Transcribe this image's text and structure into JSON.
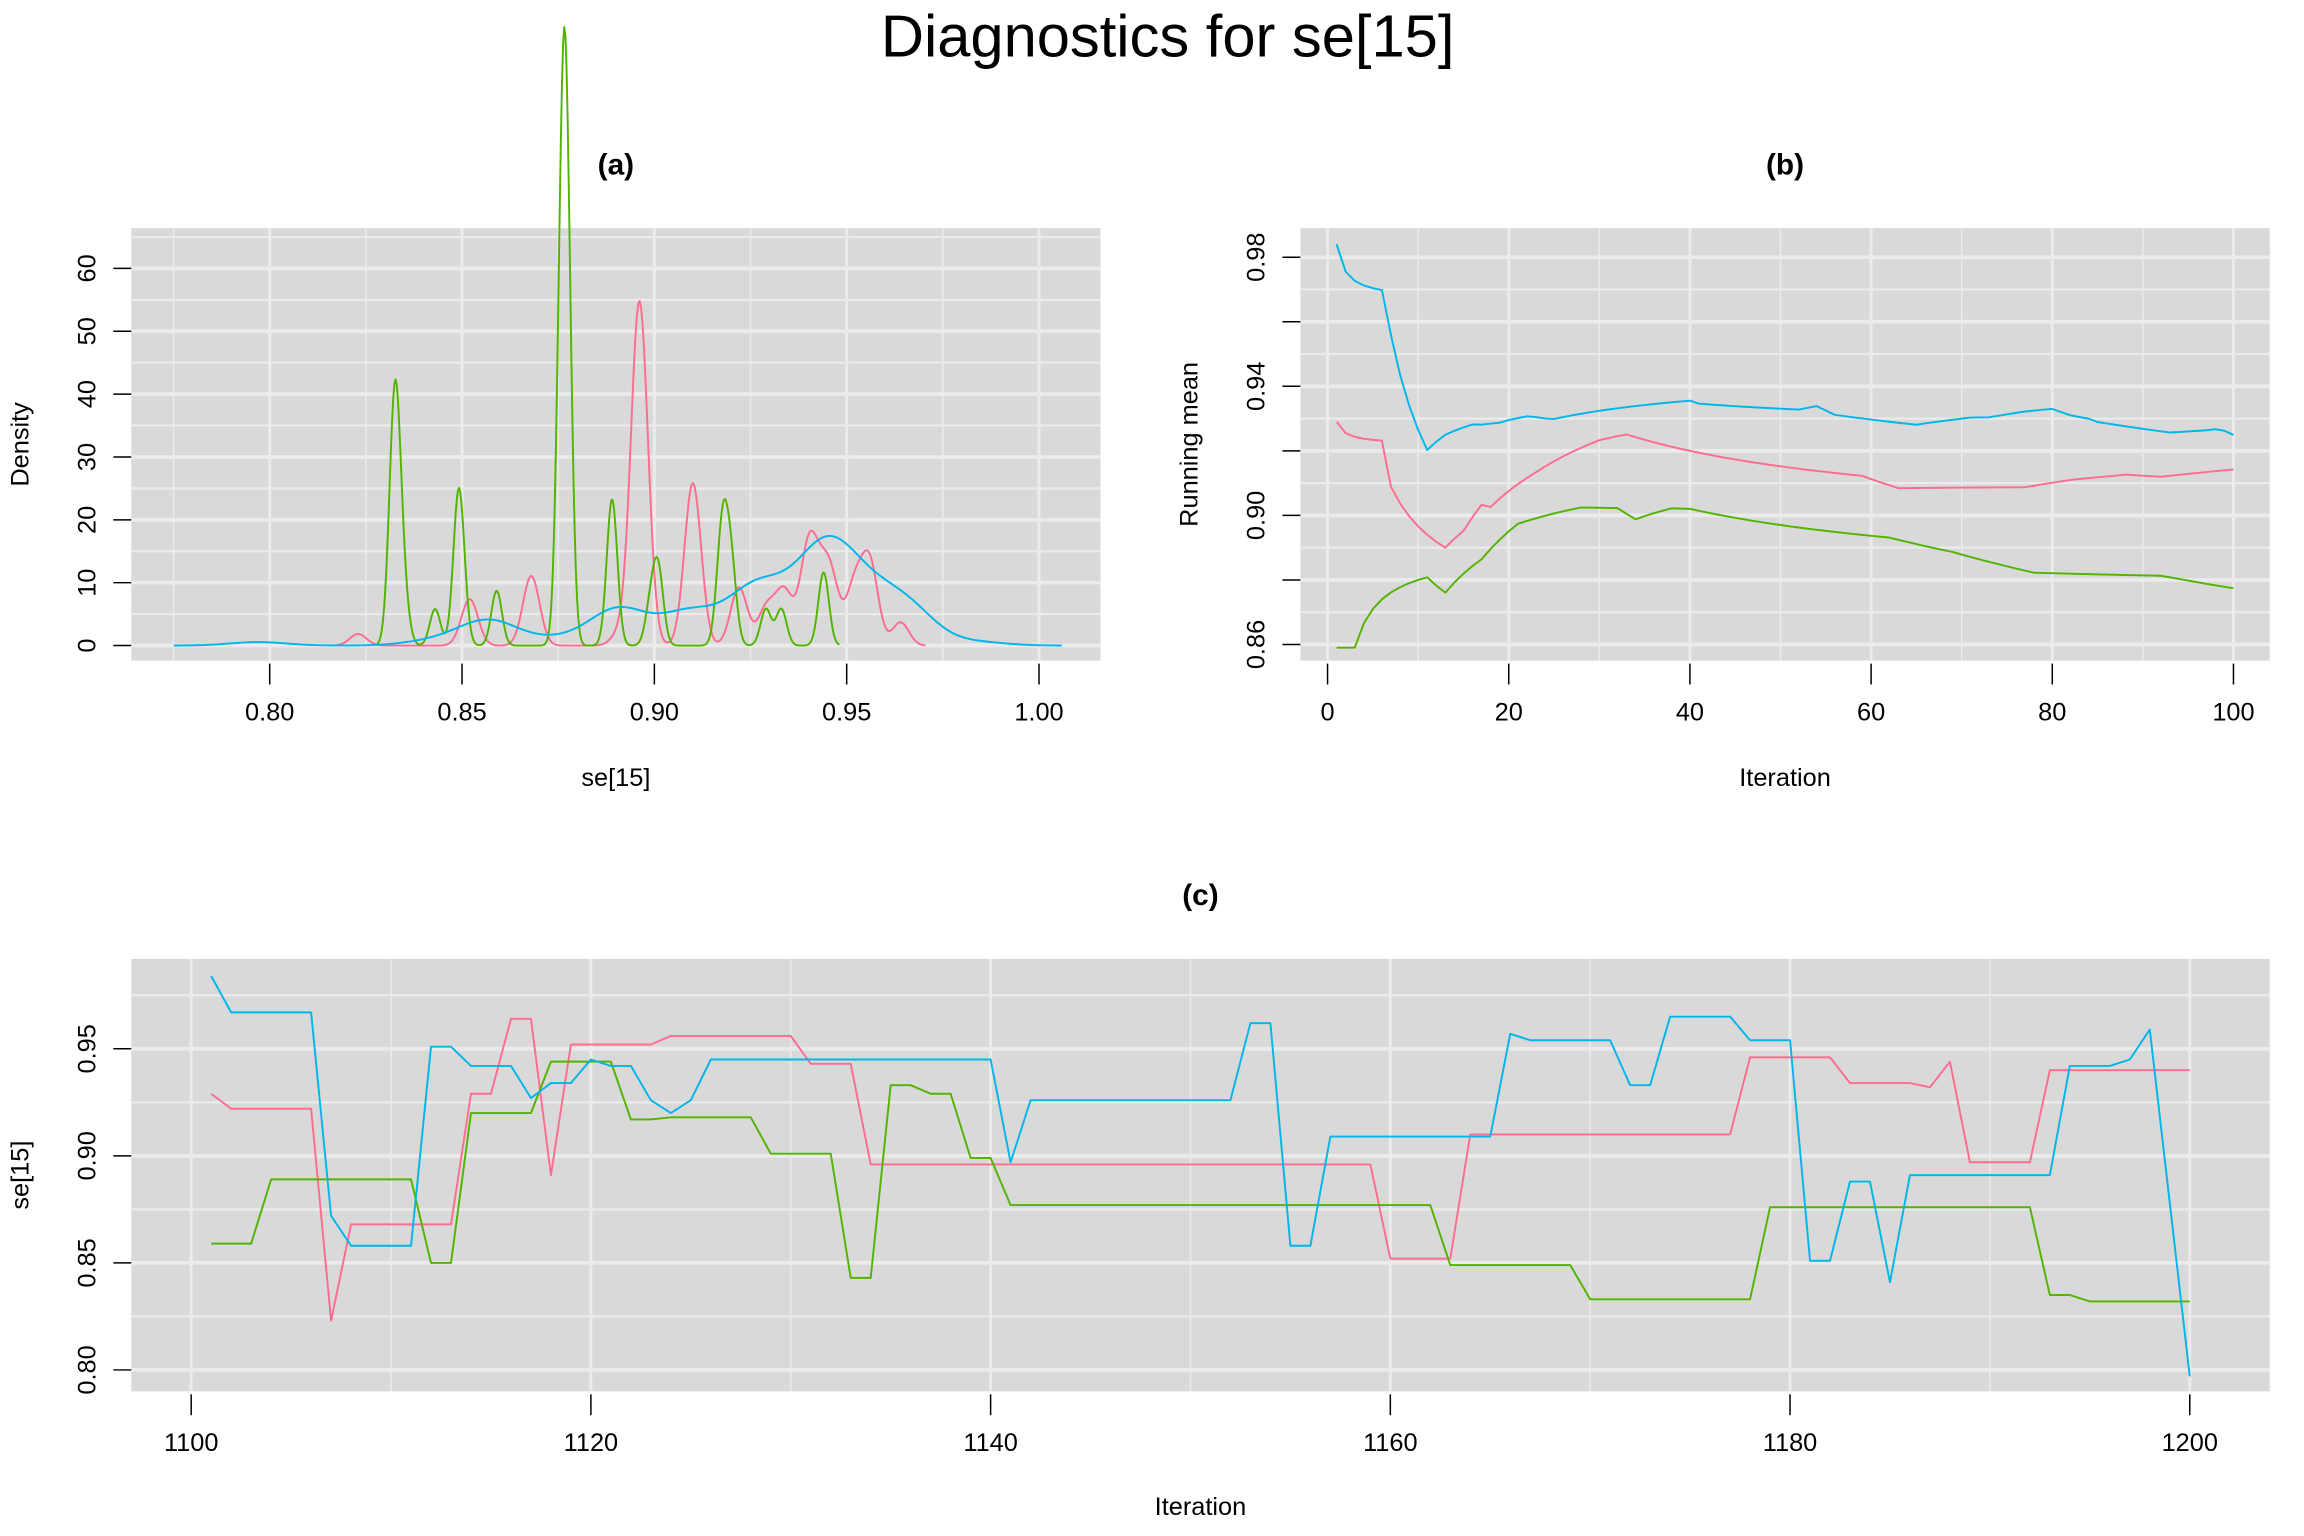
{
  "title": "Diagnostics for se[15]",
  "colors": {
    "chain1": "#FF6C91",
    "chain2": "#53B400",
    "chain3": "#00B6EB",
    "panel_bg": "#D9D9D9",
    "grid": "#EBEBEB"
  },
  "chart_data": [
    {
      "id": "a",
      "type": "line",
      "subtype": "density",
      "title": "(a)",
      "xlabel": "se[15]",
      "ylabel": "Density",
      "xlim": [
        0.764,
        1.016
      ],
      "ylim": [
        -2.4,
        66.4
      ],
      "xticks": [
        0.8,
        0.85,
        0.9,
        0.95,
        1.0
      ],
      "xtick_labels": [
        "0.80",
        "0.85",
        "0.90",
        "0.95",
        "1.00"
      ],
      "yticks": [
        0,
        10,
        20,
        30,
        40,
        50,
        60
      ],
      "ytick_labels": [
        "0",
        "10",
        "20",
        "30",
        "40",
        "50",
        "60"
      ],
      "grid": true,
      "source": "kernel density of the trace values in panel (c), per chain"
    },
    {
      "id": "b",
      "type": "line",
      "subtype": "running mean",
      "title": "(b)",
      "xlabel": "Iteration",
      "ylabel": "Running mean",
      "xlim": [
        -3,
        104
      ],
      "ylim": [
        0.855,
        0.989
      ],
      "xticks": [
        0,
        20,
        40,
        60,
        80,
        100
      ],
      "xtick_labels": [
        "0",
        "20",
        "40",
        "60",
        "80",
        "100"
      ],
      "yticks": [
        0.86,
        0.88,
        0.9,
        0.92,
        0.94,
        0.96,
        0.98
      ],
      "ytick_labels": [
        "0.86",
        "",
        "0.90",
        "",
        "0.94",
        "",
        "0.98"
      ],
      "grid": true,
      "source": "cumulative mean of the trace values in panel (c), per chain"
    },
    {
      "id": "c",
      "type": "line",
      "subtype": "trace",
      "title": "(c)",
      "xlabel": "Iteration",
      "ylabel": "se[15]",
      "xlim": [
        1097,
        1204
      ],
      "ylim": [
        0.79,
        0.992
      ],
      "xticks": [
        1100,
        1120,
        1140,
        1160,
        1180,
        1200
      ],
      "xtick_labels": [
        "1100",
        "1120",
        "1140",
        "1160",
        "1180",
        "1200"
      ],
      "yticks": [
        0.8,
        0.85,
        0.9,
        0.95
      ],
      "ytick_labels": [
        "0.80",
        "0.85",
        "0.90",
        "0.95"
      ],
      "grid": true,
      "x_start": 1101,
      "series": [
        {
          "chain": 1,
          "color": "#FF6C91",
          "values": [
            0.929,
            0.922,
            0.922,
            0.922,
            0.922,
            0.922,
            0.823,
            0.868,
            0.868,
            0.868,
            0.868,
            0.868,
            0.868,
            0.929,
            0.929,
            0.964,
            0.964,
            0.891,
            0.952,
            0.952,
            0.952,
            0.952,
            0.952,
            0.956,
            0.956,
            0.956,
            0.956,
            0.956,
            0.956,
            0.956,
            0.943,
            0.943,
            0.943,
            0.896,
            0.896,
            0.896,
            0.896,
            0.896,
            0.896,
            0.896,
            0.896,
            0.896,
            0.896,
            0.896,
            0.896,
            0.896,
            0.896,
            0.896,
            0.896,
            0.896,
            0.896,
            0.896,
            0.896,
            0.896,
            0.896,
            0.896,
            0.896,
            0.896,
            0.896,
            0.852,
            0.852,
            0.852,
            0.852,
            0.91,
            0.91,
            0.91,
            0.91,
            0.91,
            0.91,
            0.91,
            0.91,
            0.91,
            0.91,
            0.91,
            0.91,
            0.91,
            0.91,
            0.946,
            0.946,
            0.946,
            0.946,
            0.946,
            0.934,
            0.934,
            0.934,
            0.934,
            0.932,
            0.944,
            0.897,
            0.897,
            0.897,
            0.897,
            0.94,
            0.94,
            0.94,
            0.94,
            0.94,
            0.94,
            0.94,
            0.94
          ]
        },
        {
          "chain": 2,
          "color": "#53B400",
          "values": [
            0.859,
            0.859,
            0.859,
            0.889,
            0.889,
            0.889,
            0.889,
            0.889,
            0.889,
            0.889,
            0.889,
            0.85,
            0.85,
            0.92,
            0.92,
            0.92,
            0.92,
            0.944,
            0.944,
            0.944,
            0.944,
            0.917,
            0.917,
            0.918,
            0.918,
            0.918,
            0.918,
            0.918,
            0.901,
            0.901,
            0.901,
            0.901,
            0.843,
            0.843,
            0.933,
            0.933,
            0.929,
            0.929,
            0.899,
            0.899,
            0.877,
            0.877,
            0.877,
            0.877,
            0.877,
            0.877,
            0.877,
            0.877,
            0.877,
            0.877,
            0.877,
            0.877,
            0.877,
            0.877,
            0.877,
            0.877,
            0.877,
            0.877,
            0.877,
            0.877,
            0.877,
            0.877,
            0.849,
            0.849,
            0.849,
            0.849,
            0.849,
            0.849,
            0.849,
            0.833,
            0.833,
            0.833,
            0.833,
            0.833,
            0.833,
            0.833,
            0.833,
            0.833,
            0.876,
            0.876,
            0.876,
            0.876,
            0.876,
            0.876,
            0.876,
            0.876,
            0.876,
            0.876,
            0.876,
            0.876,
            0.876,
            0.876,
            0.835,
            0.835,
            0.832,
            0.832,
            0.832,
            0.832,
            0.832,
            0.832
          ]
        },
        {
          "chain": 3,
          "color": "#00B6EB",
          "values": [
            0.984,
            0.967,
            0.967,
            0.967,
            0.967,
            0.967,
            0.872,
            0.858,
            0.858,
            0.858,
            0.858,
            0.951,
            0.951,
            0.942,
            0.942,
            0.942,
            0.927,
            0.934,
            0.934,
            0.945,
            0.942,
            0.942,
            0.926,
            0.92,
            0.926,
            0.945,
            0.945,
            0.945,
            0.945,
            0.945,
            0.945,
            0.945,
            0.945,
            0.945,
            0.945,
            0.945,
            0.945,
            0.945,
            0.945,
            0.945,
            0.897,
            0.926,
            0.926,
            0.926,
            0.926,
            0.926,
            0.926,
            0.926,
            0.926,
            0.926,
            0.926,
            0.926,
            0.962,
            0.962,
            0.858,
            0.858,
            0.909,
            0.909,
            0.909,
            0.909,
            0.909,
            0.909,
            0.909,
            0.909,
            0.909,
            0.957,
            0.954,
            0.954,
            0.954,
            0.954,
            0.954,
            0.933,
            0.933,
            0.965,
            0.965,
            0.965,
            0.965,
            0.954,
            0.954,
            0.954,
            0.851,
            0.851,
            0.888,
            0.888,
            0.841,
            0.891,
            0.891,
            0.891,
            0.891,
            0.891,
            0.891,
            0.891,
            0.891,
            0.942,
            0.942,
            0.942,
            0.945,
            0.959,
            0.878,
            0.797
          ]
        }
      ]
    }
  ]
}
